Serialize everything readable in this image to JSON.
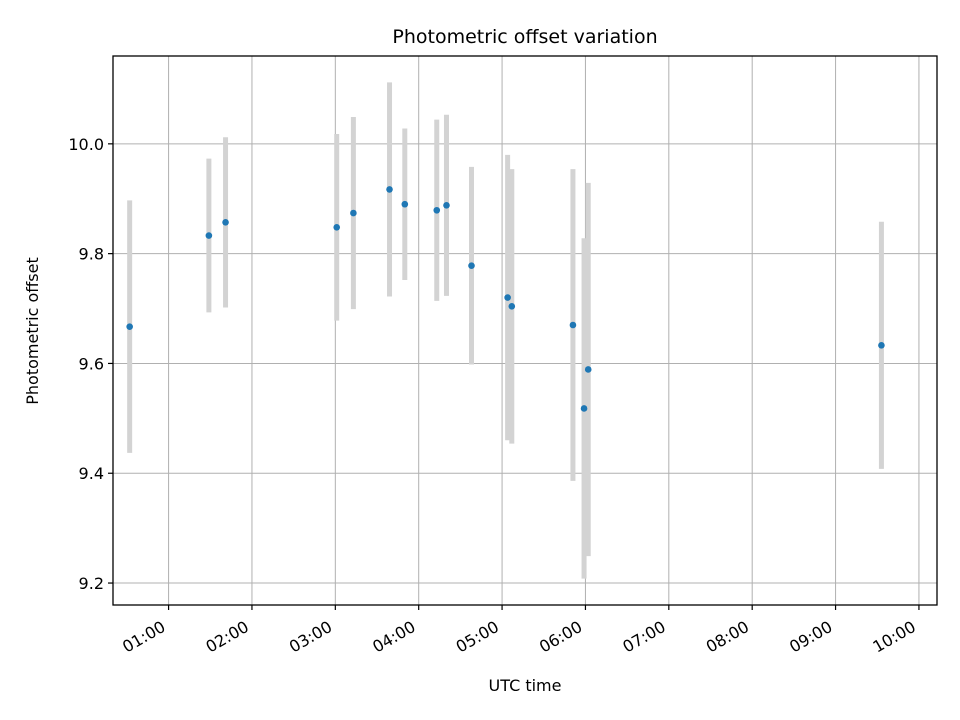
{
  "chart_data": {
    "type": "scatter",
    "title": "Photometric offset variation",
    "xlabel": "UTC time",
    "ylabel": "Photometric offset",
    "grid": true,
    "x_ticks": [
      "01:00",
      "02:00",
      "03:00",
      "04:00",
      "05:00",
      "06:00",
      "07:00",
      "08:00",
      "09:00",
      "10:00"
    ],
    "y_ticks": [
      "9.2",
      "9.4",
      "9.6",
      "9.8",
      "10.0"
    ],
    "xlim": [
      "00:20",
      "10:13"
    ],
    "ylim": [
      9.16,
      10.16
    ],
    "colors": {
      "point": "#1f77b4",
      "errorbar": "#d3d3d3",
      "grid": "#b0b0b0"
    },
    "points": [
      {
        "x": "00:32",
        "y": 9.667,
        "err": 0.23
      },
      {
        "x": "01:29",
        "y": 9.833,
        "err": 0.14
      },
      {
        "x": "01:41",
        "y": 9.857,
        "err": 0.155
      },
      {
        "x": "03:01",
        "y": 9.848,
        "err": 0.17
      },
      {
        "x": "03:13",
        "y": 9.874,
        "err": 0.175
      },
      {
        "x": "03:39",
        "y": 9.917,
        "err": 0.195
      },
      {
        "x": "03:50",
        "y": 9.89,
        "err": 0.138
      },
      {
        "x": "04:13",
        "y": 9.879,
        "err": 0.165
      },
      {
        "x": "04:20",
        "y": 9.888,
        "err": 0.165
      },
      {
        "x": "04:38",
        "y": 9.778,
        "err": 0.18
      },
      {
        "x": "05:04",
        "y": 9.72,
        "err": 0.26
      },
      {
        "x": "05:07",
        "y": 9.704,
        "err": 0.25
      },
      {
        "x": "05:51",
        "y": 9.67,
        "err": 0.284
      },
      {
        "x": "05:59",
        "y": 9.518,
        "err": 0.31
      },
      {
        "x": "06:02",
        "y": 9.589,
        "err": 0.34
      },
      {
        "x": "09:33",
        "y": 9.633,
        "err": 0.225
      }
    ]
  }
}
